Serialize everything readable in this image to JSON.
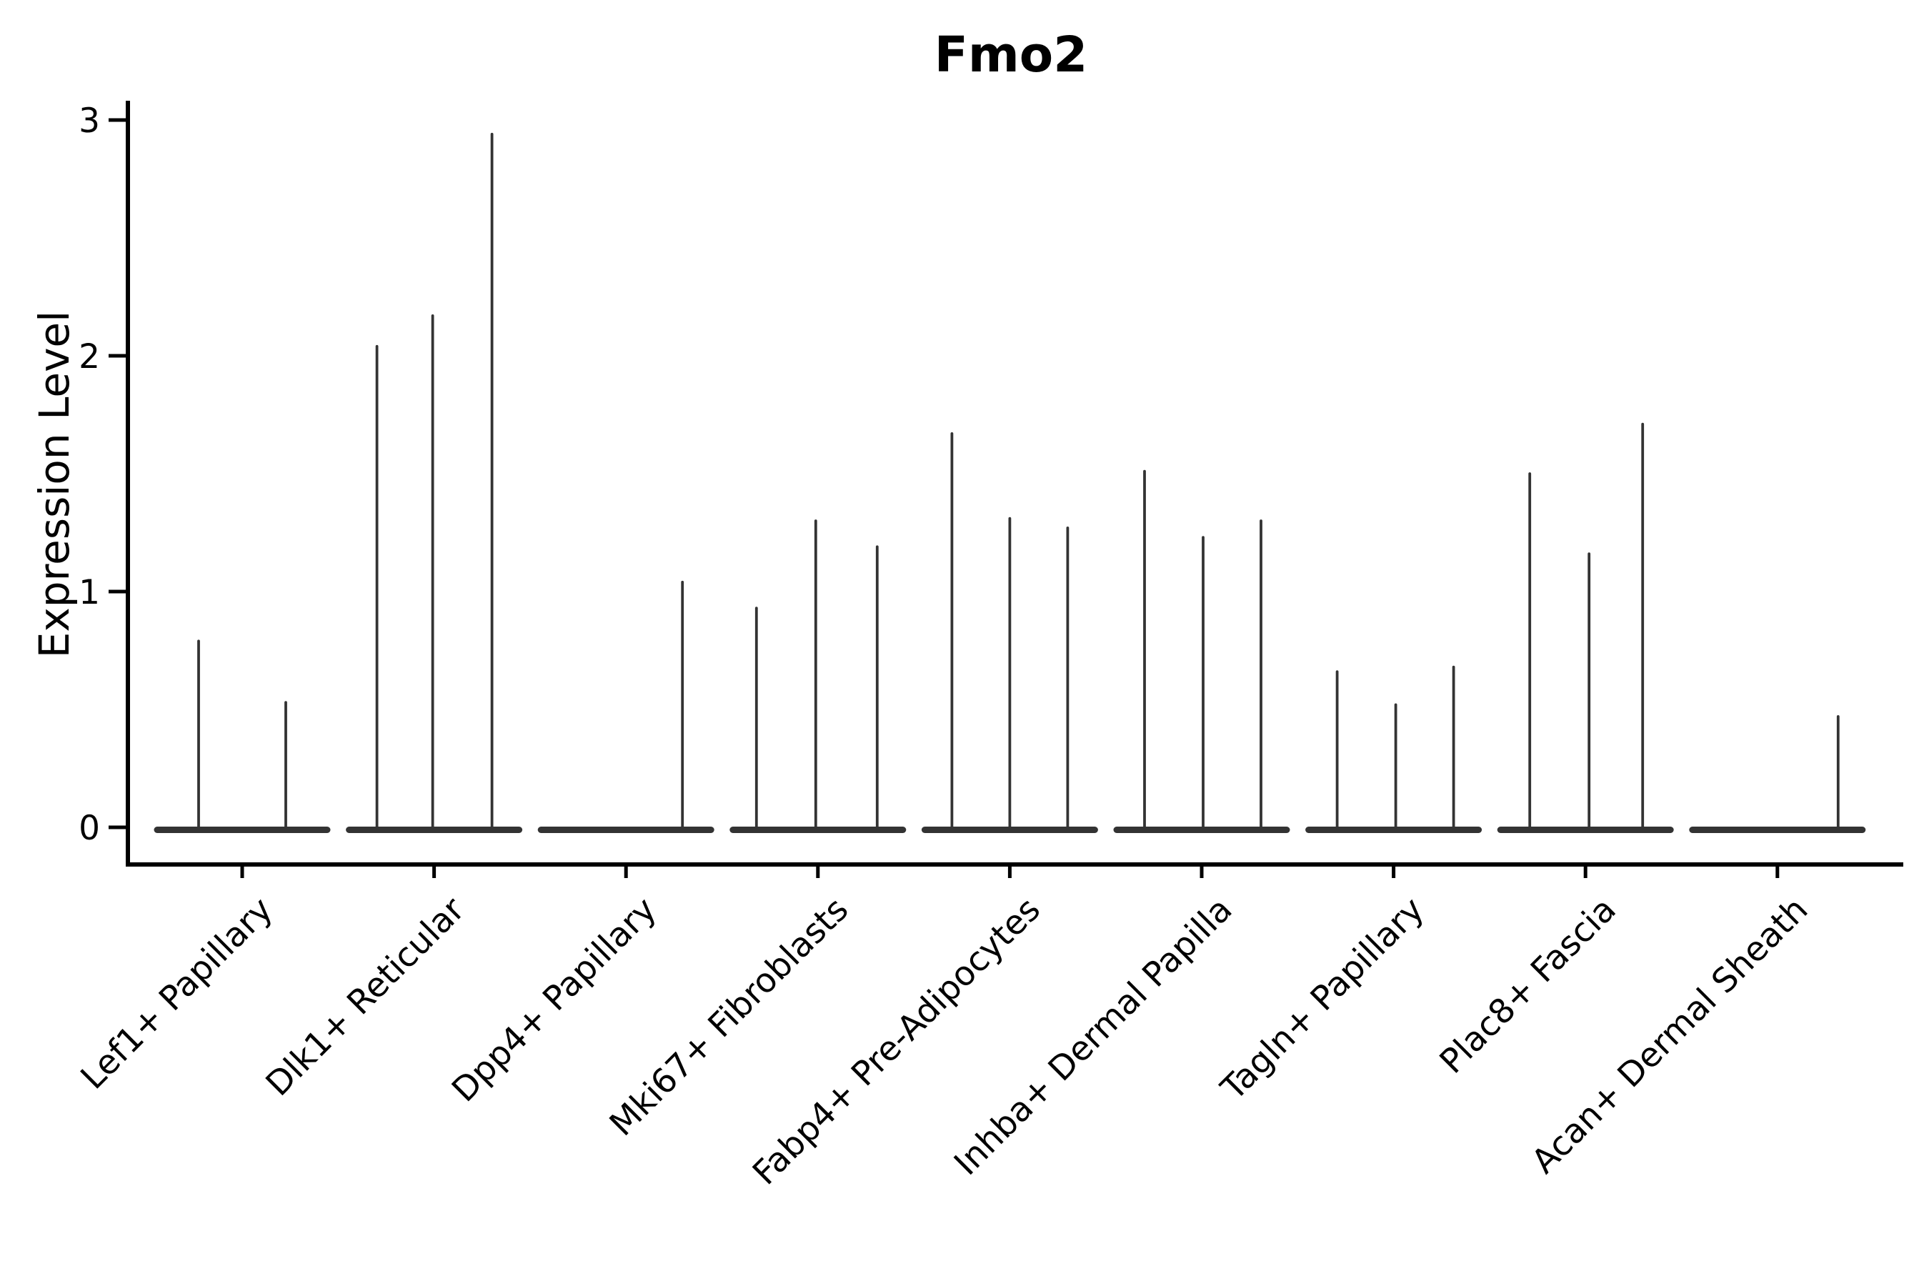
{
  "figure": {
    "background": "#ffffff"
  },
  "chart_data": {
    "type": "violin",
    "title": "Fmo2",
    "ylabel": "Expression Level",
    "xlabel": "",
    "ylim": [
      0,
      3.08
    ],
    "yticks": [
      0,
      1,
      2,
      3
    ],
    "grid": false,
    "legend": "none",
    "ink_color": "#333333",
    "axis_color": "#000000",
    "categories": [
      "Lef1+ Papillary",
      "Dlk1+ Reticular",
      "Dpp4+ Papillary",
      "Mki67+ Fibroblasts",
      "Fabp4+ Pre-Adipocytes",
      "Inhba+ Dermal Papilla",
      "Tagln+ Papillary",
      "Plac8+ Fascia",
      "Acan+ Dermal Sheath"
    ],
    "series": [
      {
        "category": "Lef1+ Papillary",
        "baseline_value": 0,
        "spikes": [
          {
            "offset": -61,
            "value": 0.79
          },
          {
            "offset": 61,
            "value": 0.53
          }
        ]
      },
      {
        "category": "Dlk1+ Reticular",
        "baseline_value": 0,
        "spikes": [
          {
            "offset": -80,
            "value": 2.04
          },
          {
            "offset": -2,
            "value": 2.17
          },
          {
            "offset": 81,
            "value": 2.94
          }
        ]
      },
      {
        "category": "Dpp4+ Papillary",
        "baseline_value": 0,
        "spikes": [
          {
            "offset": 79,
            "value": 1.04
          }
        ]
      },
      {
        "category": "Mki67+ Fibroblasts",
        "baseline_value": 0,
        "spikes": [
          {
            "offset": -86,
            "value": 0.93
          },
          {
            "offset": -3,
            "value": 1.3
          },
          {
            "offset": 83,
            "value": 1.19
          }
        ]
      },
      {
        "category": "Fabp4+ Pre-Adipocytes",
        "baseline_value": 0,
        "spikes": [
          {
            "offset": -81,
            "value": 1.67
          },
          {
            "offset": 0,
            "value": 1.31
          },
          {
            "offset": 81,
            "value": 1.27
          }
        ]
      },
      {
        "category": "Inhba+ Dermal Papilla",
        "baseline_value": 0,
        "spikes": [
          {
            "offset": -80,
            "value": 1.51
          },
          {
            "offset": 2,
            "value": 1.23
          },
          {
            "offset": 83,
            "value": 1.3
          }
        ]
      },
      {
        "category": "Tagln+ Papillary",
        "baseline_value": 0,
        "spikes": [
          {
            "offset": -79,
            "value": 0.66
          },
          {
            "offset": 3,
            "value": 0.52
          },
          {
            "offset": 84,
            "value": 0.68
          }
        ]
      },
      {
        "category": "Plac8+ Fascia",
        "baseline_value": 0,
        "spikes": [
          {
            "offset": -78,
            "value": 1.5
          },
          {
            "offset": 5,
            "value": 1.16
          },
          {
            "offset": 80,
            "value": 1.71
          }
        ]
      },
      {
        "category": "Acan+ Dermal Sheath",
        "baseline_value": 0,
        "spikes": [
          {
            "offset": 85,
            "value": 0.47
          }
        ]
      }
    ]
  }
}
